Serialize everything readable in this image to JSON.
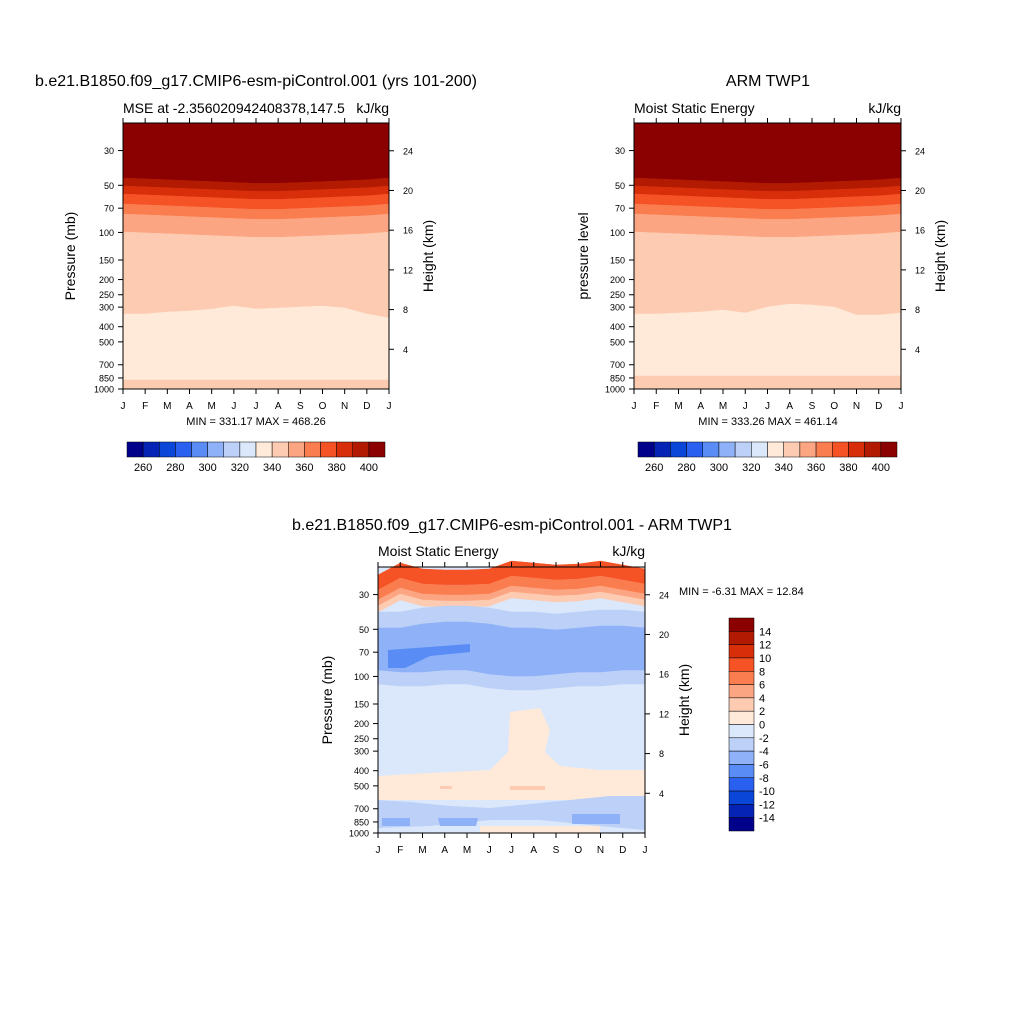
{
  "figure": {
    "panels": [
      {
        "title": "b.e21.B1850.f09_g17.CMIP6-esm-piControl.001 (yrs 101-200)",
        "left_label": "MSE at -2.356020942408378,147.5",
        "right_label": "kJ/kg",
        "ylabel_left": "Pressure (mb)",
        "ylabel_right": "Height (km)",
        "stats": "MIN = 331.17 MAX = 468.26"
      },
      {
        "title": "ARM TWP1",
        "left_label": "Moist Static Energy",
        "right_label": "kJ/kg",
        "ylabel_left": "pressure level",
        "ylabel_right": "Height (km)",
        "stats": "MIN = 333.26 MAX = 461.14"
      },
      {
        "title": "b.e21.B1850.f09_g17.CMIP6-esm-piControl.001 - ARM TWP1",
        "left_label": "Moist Static Energy",
        "right_label": "kJ/kg",
        "ylabel_left": "Pressure (mb)",
        "ylabel_right": "Height (km)",
        "stats": "MIN =  -6.31 MAX =  12.84"
      }
    ]
  },
  "colors": {
    "mse_scale": [
      "#00008b",
      "#0524b5",
      "#0a46d8",
      "#2a60f0",
      "#5a8cf5",
      "#8fb1f7",
      "#bcd0f8",
      "#dbe8fb",
      "#ffe9d8",
      "#fccbb2",
      "#fca582",
      "#fa7d50",
      "#f55226",
      "#d92e0a",
      "#b31a02",
      "#8b0000"
    ],
    "diff_scale": [
      "#00008b",
      "#0524b5",
      "#0a46d8",
      "#2a60f0",
      "#5a8cf5",
      "#8fb1f7",
      "#bcd0f8",
      "#dbe8fb",
      "#ffe9d8",
      "#fccbb2",
      "#fca582",
      "#fa7d50",
      "#f55226",
      "#d92e0a",
      "#b31a02",
      "#8b0000"
    ]
  },
  "chart_data": [
    {
      "type": "heatmap",
      "title": "b.e21.B1850.f09_g17.CMIP6-esm-piControl.001 (yrs 101-200)",
      "subtitle": "MSE at -2.356020942408378,147.5",
      "units": "kJ/kg",
      "x_ticks": [
        "J",
        "F",
        "M",
        "A",
        "M",
        "J",
        "J",
        "A",
        "S",
        "O",
        "N",
        "D",
        "J"
      ],
      "y_ticks_pressure": [
        30,
        50,
        70,
        100,
        150,
        200,
        250,
        300,
        400,
        500,
        700,
        850,
        1000
      ],
      "y_ticks_height": [
        24,
        20,
        16,
        12,
        8,
        4
      ],
      "ylim_pressure": [
        1000,
        20
      ],
      "ylabel": "Pressure (mb)",
      "ylabel_right": "Height (km)",
      "colorbar_levels": [
        260,
        270,
        280,
        290,
        300,
        310,
        320,
        330,
        340,
        350,
        360,
        370,
        380,
        390,
        400
      ],
      "colorbar_labels": [
        "260",
        "280",
        "300",
        "320",
        "340",
        "360",
        "380",
        "400"
      ],
      "min": 331.17,
      "max": 468.26
    },
    {
      "type": "heatmap",
      "title": "ARM TWP1",
      "subtitle": "Moist Static Energy",
      "units": "kJ/kg",
      "x_ticks": [
        "J",
        "F",
        "M",
        "A",
        "M",
        "J",
        "J",
        "A",
        "S",
        "O",
        "N",
        "D",
        "J"
      ],
      "y_ticks_pressure": [
        30,
        50,
        70,
        100,
        150,
        200,
        250,
        300,
        400,
        500,
        700,
        850,
        1000
      ],
      "y_ticks_height": [
        24,
        20,
        16,
        12,
        8,
        4
      ],
      "ylim_pressure": [
        1000,
        20
      ],
      "ylabel": "pressure level",
      "ylabel_right": "Height (km)",
      "colorbar_levels": [
        260,
        270,
        280,
        290,
        300,
        310,
        320,
        330,
        340,
        350,
        360,
        370,
        380,
        390,
        400
      ],
      "colorbar_labels": [
        "260",
        "280",
        "300",
        "320",
        "340",
        "360",
        "380",
        "400"
      ],
      "min": 333.26,
      "max": 461.14
    },
    {
      "type": "heatmap",
      "title": "b.e21.B1850.f09_g17.CMIP6-esm-piControl.001 - ARM TWP1",
      "subtitle": "Moist Static Energy",
      "units": "kJ/kg",
      "x_ticks": [
        "J",
        "F",
        "M",
        "A",
        "M",
        "J",
        "J",
        "A",
        "S",
        "O",
        "N",
        "D",
        "J"
      ],
      "y_ticks_pressure": [
        30,
        50,
        70,
        100,
        150,
        200,
        250,
        300,
        400,
        500,
        700,
        850,
        1000
      ],
      "y_ticks_height": [
        24,
        20,
        16,
        12,
        8,
        4
      ],
      "ylim_pressure": [
        1000,
        20
      ],
      "ylabel": "Pressure (mb)",
      "ylabel_right": "Height (km)",
      "colorbar_levels": [
        -14,
        -12,
        -10,
        -8,
        -6,
        -4,
        -2,
        0,
        2,
        4,
        6,
        8,
        10,
        12,
        14
      ],
      "colorbar_labels": [
        "14",
        "12",
        "10",
        "8",
        "6",
        "4",
        "2",
        "0",
        "-2",
        "-4",
        "-6",
        "-8",
        "-10",
        "-12",
        "-14"
      ],
      "min": -6.31,
      "max": 12.84
    }
  ]
}
